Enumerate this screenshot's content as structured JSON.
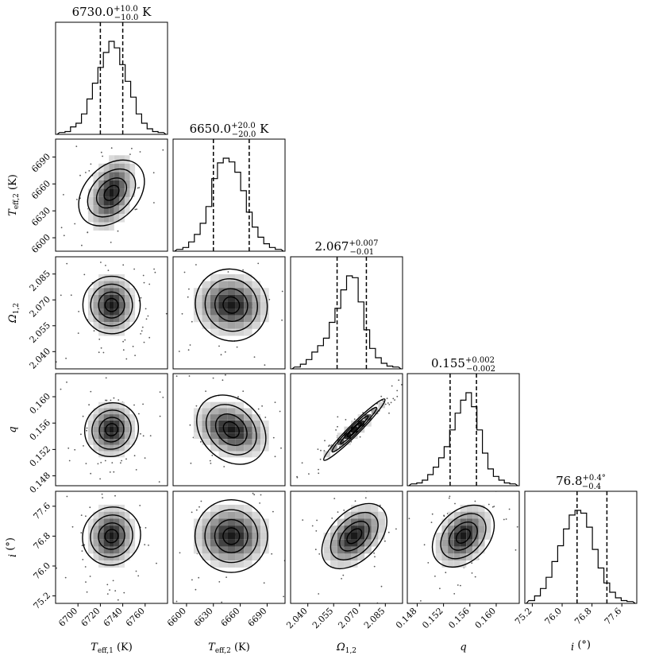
{
  "figure": "corner-plot",
  "chart_data": {
    "type": "corner",
    "parameters": [
      {
        "key": "teff1",
        "axis_label": "T_eff,1 (K)",
        "label_main": "T",
        "label_sub": "eff,1",
        "label_unit": " (K)",
        "title_value": "6730.0",
        "title_plus": "+10.0",
        "title_minus": "−10.0",
        "title_unit": " K",
        "median": 6730.0,
        "lo": 6720.0,
        "hi": 6740.0,
        "range": [
          6680,
          6780
        ],
        "ticks": [
          "6700",
          "6720",
          "6740",
          "6760"
        ]
      },
      {
        "key": "teff2",
        "axis_label": "T_eff,2 (K)",
        "label_main": "T",
        "label_sub": "eff,2",
        "label_unit": " (K)",
        "title_value": "6650.0",
        "title_plus": "+20.0",
        "title_minus": "−20.0",
        "title_unit": " K",
        "median": 6650.0,
        "lo": 6630.0,
        "hi": 6670.0,
        "range": [
          6585,
          6710
        ],
        "ticks": [
          "6600",
          "6630",
          "6660",
          "6690"
        ]
      },
      {
        "key": "omega12",
        "axis_label": "Ω_1,2",
        "label_main": "Ω",
        "label_sub": "1,2",
        "label_unit": "",
        "title_value": "2.067",
        "title_plus": "+0.007",
        "title_minus": "−0.01",
        "title_unit": "",
        "median": 2.067,
        "lo": 2.057,
        "hi": 2.074,
        "range": [
          2.03,
          2.095
        ],
        "ticks": [
          "2.040",
          "2.055",
          "2.070",
          "2.085"
        ]
      },
      {
        "key": "q",
        "axis_label": "q",
        "label_main": "q",
        "label_sub": "",
        "label_unit": "",
        "title_value": "0.155",
        "title_plus": "+0.002",
        "title_minus": "−0.002",
        "title_unit": "",
        "median": 0.155,
        "lo": 0.153,
        "hi": 0.157,
        "range": [
          0.1465,
          0.1635
        ],
        "ticks": [
          "0.148",
          "0.152",
          "0.156",
          "0.160"
        ]
      },
      {
        "key": "incl",
        "axis_label": "i (°)",
        "label_main": "i",
        "label_sub": "",
        "label_unit": " (°)",
        "title_value": "76.8",
        "title_plus": "+0.4°",
        "title_minus": "−0.4",
        "title_unit": "",
        "median": 76.8,
        "lo": 76.4,
        "hi": 77.2,
        "range": [
          75.0,
          78.0
        ],
        "ticks": [
          "75.2",
          "76.0",
          "76.8",
          "77.6"
        ]
      }
    ],
    "histograms": {
      "teff1": [
        0.02,
        0.03,
        0.08,
        0.12,
        0.22,
        0.38,
        0.55,
        0.72,
        0.88,
        1.0,
        0.93,
        0.75,
        0.57,
        0.4,
        0.22,
        0.12,
        0.06,
        0.03,
        0.02
      ],
      "teff2": [
        0.02,
        0.04,
        0.1,
        0.18,
        0.3,
        0.48,
        0.78,
        0.95,
        1.0,
        0.96,
        0.85,
        0.65,
        0.42,
        0.26,
        0.15,
        0.08,
        0.04,
        0.02
      ],
      "omega12": [
        0.02,
        0.05,
        0.1,
        0.18,
        0.25,
        0.33,
        0.5,
        0.65,
        0.85,
        1.0,
        0.98,
        0.72,
        0.42,
        0.22,
        0.12,
        0.06,
        0.03,
        0.02
      ],
      "q": [
        0.02,
        0.03,
        0.06,
        0.12,
        0.2,
        0.3,
        0.42,
        0.6,
        0.78,
        0.92,
        1.0,
        0.85,
        0.6,
        0.35,
        0.18,
        0.1,
        0.06,
        0.03,
        0.02
      ],
      "incl": [
        0.03,
        0.08,
        0.16,
        0.28,
        0.45,
        0.62,
        0.8,
        0.95,
        1.0,
        0.97,
        0.82,
        0.58,
        0.38,
        0.22,
        0.12,
        0.06,
        0.03,
        0.02
      ]
    },
    "correlations": {
      "1-0": 0.35,
      "2-0": 0.0,
      "2-1": -0.05,
      "3-0": 0.05,
      "3-1": -0.25,
      "3-2": 0.97,
      "4-0": 0.05,
      "4-1": 0.0,
      "4-2": 0.45,
      "4-3": 0.35
    },
    "contour_levels_sigma": [
      0.5,
      1.0,
      1.6,
      2.2
    ]
  }
}
